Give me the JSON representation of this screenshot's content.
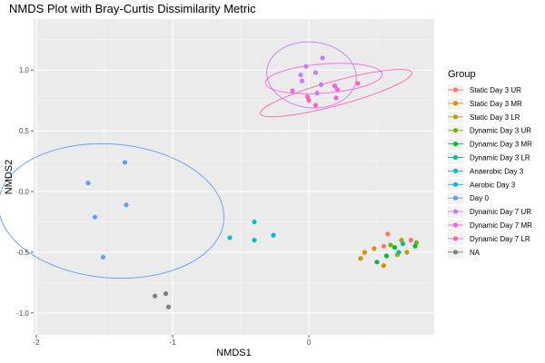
{
  "chart_data": {
    "type": "scatter",
    "title": "NMDS Plot with Bray-Curtis Dissimilarity Metric",
    "xlabel": "NMDS1",
    "ylabel": "NMDS2",
    "xlim": [
      -2.02,
      0.92
    ],
    "ylim": [
      -1.18,
      1.42
    ],
    "x_ticks": [
      -2,
      -1,
      0
    ],
    "y_ticks": [
      1.0,
      0.5,
      0.0,
      -0.5,
      -1.0
    ],
    "x_tick_labels": [
      "-2",
      "-1",
      "0"
    ],
    "y_tick_labels": [
      "1.0",
      "0.5",
      "0.0",
      "-0.5",
      "-1.0"
    ],
    "grid": true,
    "background": "#ebebeb",
    "legend": {
      "title": "Group",
      "position": "right"
    },
    "series": [
      {
        "name": "Static Day 3 UR",
        "color": "#F8766D",
        "points": [
          [
            0.58,
            -0.35
          ],
          [
            0.55,
            -0.45
          ],
          [
            0.75,
            -0.4
          ]
        ]
      },
      {
        "name": "Static Day 3 MR",
        "color": "#DE8C00",
        "points": [
          [
            0.38,
            -0.55
          ],
          [
            0.41,
            -0.5
          ],
          [
            0.48,
            -0.47
          ],
          [
            0.55,
            -0.61
          ]
        ]
      },
      {
        "name": "Static Day 3 LR",
        "color": "#B79F00",
        "points": [
          [
            0.68,
            -0.4
          ],
          [
            0.72,
            -0.5
          ],
          [
            0.65,
            -0.52
          ]
        ]
      },
      {
        "name": "Dynamic Day 3 UR",
        "color": "#7CAE00",
        "points": [
          [
            0.79,
            -0.42
          ],
          [
            0.6,
            -0.44
          ]
        ]
      },
      {
        "name": "Dynamic Day 3 MR",
        "color": "#00BA38",
        "points": [
          [
            0.5,
            -0.58
          ],
          [
            0.57,
            -0.53
          ],
          [
            0.63,
            -0.46
          ],
          [
            0.78,
            -0.45
          ]
        ]
      },
      {
        "name": "Dynamic Day 3 LR",
        "color": "#00C08B",
        "points": [
          [
            0.69,
            -0.43
          ],
          [
            0.66,
            -0.5
          ]
        ]
      },
      {
        "name": "Anaerobic Day 3",
        "color": "#00BFC4",
        "points": [
          [
            -0.58,
            -0.38
          ],
          [
            -0.4,
            -0.25
          ],
          [
            -0.4,
            -0.4
          ]
        ]
      },
      {
        "name": "Aerobic Day 3",
        "color": "#00B4F0",
        "points": [
          [
            -0.26,
            -0.36
          ]
        ]
      },
      {
        "name": "Day 0",
        "color": "#619CFF",
        "points": [
          [
            -1.35,
            0.24
          ],
          [
            -1.62,
            0.07
          ],
          [
            -1.34,
            -0.11
          ],
          [
            -1.57,
            -0.21
          ],
          [
            -1.51,
            -0.54
          ]
        ]
      },
      {
        "name": "Dynamic Day 7 UR",
        "color": "#C77CFF",
        "points": [
          [
            -0.02,
            1.03
          ],
          [
            -0.06,
            0.96
          ],
          [
            0.1,
            1.1
          ],
          [
            0.05,
            0.98
          ],
          [
            0.09,
            0.88
          ],
          [
            -0.05,
            0.91
          ],
          [
            0.06,
            0.81
          ]
        ]
      },
      {
        "name": "Dynamic Day 7 MR",
        "color": "#F564E3",
        "points": [
          [
            -0.12,
            0.83
          ],
          [
            0.19,
            0.87
          ],
          [
            0.21,
            0.84
          ],
          [
            0.2,
            0.77
          ]
        ]
      },
      {
        "name": "Dynamic Day 7 LR",
        "color": "#FF64B0",
        "points": [
          [
            -0.01,
            0.78
          ],
          [
            0.0,
            0.75
          ],
          [
            0.05,
            0.71
          ],
          [
            0.36,
            0.89
          ]
        ]
      },
      {
        "name": "NA",
        "color": "#7F7F7F",
        "points": [
          [
            -1.05,
            -0.84
          ],
          [
            -1.13,
            -0.86
          ],
          [
            -1.03,
            -0.95
          ]
        ]
      }
    ],
    "ellipses": [
      {
        "group": "Day 0",
        "color": "#619CFF",
        "cx": -1.45,
        "cy": -0.16,
        "rx": 0.55,
        "ry": 0.83,
        "rotation_deg": 84
      },
      {
        "group": "Dynamic Day 7 UR",
        "color": "#C77CFF",
        "cx": 0.02,
        "cy": 0.96,
        "rx": 0.27,
        "ry": 0.33,
        "rotation_deg": 80
      },
      {
        "group": "Dynamic Day 7 MR",
        "color": "#F564E3",
        "cx": 0.11,
        "cy": 0.93,
        "rx": 0.43,
        "ry": 0.12,
        "rotation_deg": 5
      },
      {
        "group": "Dynamic Day 7 LR",
        "color": "#FF64B0",
        "cx": 0.2,
        "cy": 0.81,
        "rx": 0.58,
        "ry": 0.1,
        "rotation_deg": 17
      }
    ]
  }
}
